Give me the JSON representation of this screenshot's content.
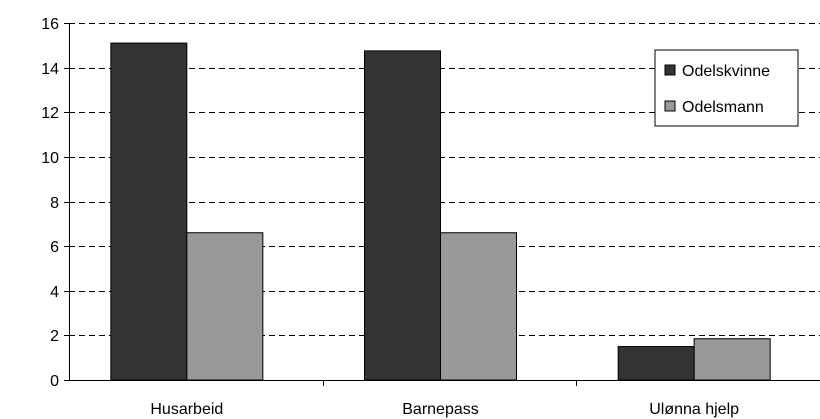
{
  "chart_data": {
    "type": "bar",
    "categories": [
      "Husarbeid",
      "Barnepass",
      "Ulønna hjelp"
    ],
    "series": [
      {
        "name": "Odelskvinne",
        "values": [
          15.1,
          14.75,
          1.5
        ],
        "color": "#333333"
      },
      {
        "name": "Odelsmann",
        "values": [
          6.6,
          6.6,
          1.85
        ],
        "color": "#999999"
      }
    ],
    "ylim": [
      0,
      16
    ],
    "yticks": [
      0,
      2,
      4,
      6,
      8,
      10,
      12,
      14,
      16
    ],
    "grid": true,
    "grid_style": "dashed",
    "legend_position": "top-right",
    "title": "",
    "xlabel": "",
    "ylabel": ""
  }
}
